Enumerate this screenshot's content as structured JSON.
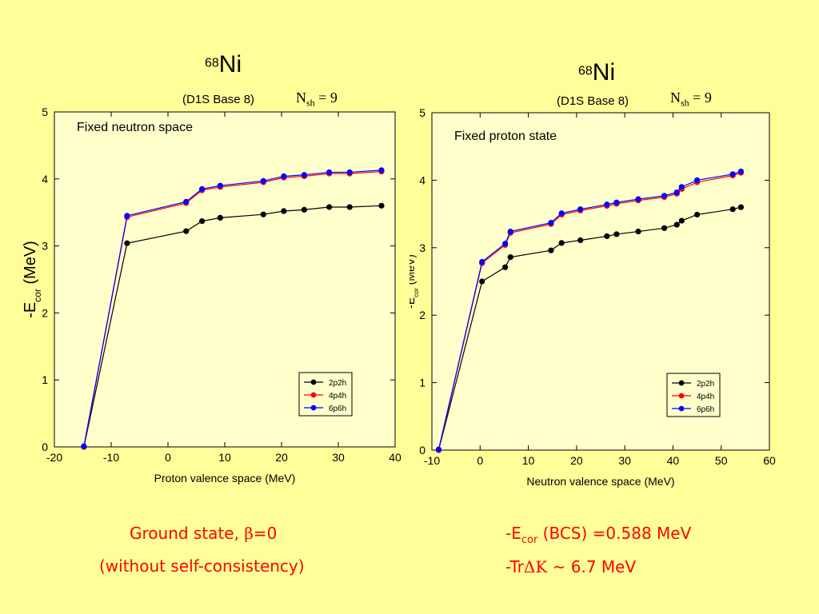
{
  "colors": {
    "background": "#ffff99",
    "plot_bg": "#ffffcc",
    "note": "#ff0000"
  },
  "left_panel": {
    "mass": "68",
    "element": "Ni",
    "subtitle": "(D1S  Base 8)",
    "nsh_base": "N",
    "nsh_sub": "sh",
    "nsh_tail": " = 9"
  },
  "right_panel": {
    "mass": "68",
    "element": "Ni",
    "subtitle": "(D1S  Base 8)",
    "nsh_base": "N",
    "nsh_sub": "sh",
    "nsh_tail": " = 9"
  },
  "notes": {
    "ground_state": "Ground state,  ",
    "beta": "β",
    "beta_eq": "=0",
    "self_consistency": "(without self-consistency)",
    "ecor_prefix": "-E",
    "ecor_sub": "cor",
    "ecor_tail": " (BCS) =0.588 MeV",
    "tr_prefix": "-Tr",
    "tr_symbols": "ΔΚ",
    "tr_tail": " ~ 6.7 MeV"
  },
  "chart_data": [
    {
      "type": "line",
      "annotation": "Fixed neutron space",
      "xlabel": "Proton valence space (MeV)",
      "ylabel_prefix": "-E",
      "ylabel_sub": "cor",
      "ylabel_tail": " (MeV)",
      "xlim": [
        -20,
        40
      ],
      "ylim": [
        0,
        5
      ],
      "xticks": [
        -20,
        -10,
        0,
        10,
        20,
        30,
        40
      ],
      "yticks": [
        0,
        1,
        2,
        3,
        4,
        5
      ],
      "legend_position": "bottom-right",
      "series": [
        {
          "name": "2p2h",
          "color": "#000000",
          "x": [
            -14.8,
            -7.2,
            3.2,
            6.0,
            9.2,
            16.8,
            20.4,
            24.0,
            28.4,
            32.0,
            37.6
          ],
          "y": [
            0.0,
            3.04,
            3.22,
            3.37,
            3.42,
            3.47,
            3.52,
            3.54,
            3.58,
            3.58,
            3.6
          ]
        },
        {
          "name": "4p4h",
          "color": "#ff0000",
          "x": [
            -14.8,
            -7.2,
            3.2,
            6.0,
            9.2,
            16.8,
            20.4,
            24.0,
            28.4,
            32.0,
            37.6
          ],
          "y": [
            0.0,
            3.43,
            3.64,
            3.83,
            3.88,
            3.95,
            4.02,
            4.04,
            4.08,
            4.08,
            4.11
          ]
        },
        {
          "name": "6p6h",
          "color": "#0000ff",
          "x": [
            -14.8,
            -7.2,
            3.2,
            6.0,
            9.2,
            16.8,
            20.4,
            24.0,
            28.4,
            32.0,
            37.6
          ],
          "y": [
            0.01,
            3.45,
            3.66,
            3.85,
            3.9,
            3.97,
            4.04,
            4.06,
            4.1,
            4.1,
            4.13
          ]
        }
      ]
    },
    {
      "type": "line",
      "annotation": "Fixed proton state",
      "xlabel": "Neutron valence space (MeV)",
      "ylabel_prefix": "-E",
      "ylabel_sub": "cor",
      "ylabel_tail": " (MeV)",
      "xlim": [
        -10,
        60
      ],
      "ylim": [
        0,
        5
      ],
      "xticks": [
        -10,
        0,
        10,
        20,
        30,
        40,
        50,
        60
      ],
      "yticks": [
        0,
        1,
        2,
        3,
        4,
        5
      ],
      "legend_position": "bottom-right",
      "series": [
        {
          "name": "2p2h",
          "color": "#000000",
          "x": [
            -8.6,
            0.4,
            5.2,
            6.3,
            14.7,
            16.9,
            20.8,
            26.3,
            28.3,
            32.8,
            38.2,
            40.8,
            41.8,
            45.0,
            52.4,
            54.1
          ],
          "y": [
            0.0,
            2.5,
            2.71,
            2.86,
            2.96,
            3.07,
            3.11,
            3.17,
            3.2,
            3.24,
            3.29,
            3.34,
            3.4,
            3.49,
            3.57,
            3.6
          ]
        },
        {
          "name": "4p4h",
          "color": "#ff0000",
          "x": [
            -8.6,
            0.4,
            5.2,
            6.3,
            14.7,
            16.9,
            20.8,
            26.3,
            28.3,
            32.8,
            38.2,
            40.8,
            41.8,
            45.0,
            52.4,
            54.1
          ],
          "y": [
            0.0,
            2.77,
            3.04,
            3.22,
            3.35,
            3.49,
            3.55,
            3.62,
            3.65,
            3.7,
            3.75,
            3.8,
            3.87,
            3.97,
            4.07,
            4.11
          ]
        },
        {
          "name": "6p6h",
          "color": "#0000ff",
          "x": [
            -8.6,
            0.4,
            5.2,
            6.3,
            14.7,
            16.9,
            20.8,
            26.3,
            28.3,
            32.8,
            38.2,
            40.8,
            41.8,
            45.0,
            52.4,
            54.1
          ],
          "y": [
            0.01,
            2.79,
            3.06,
            3.24,
            3.37,
            3.51,
            3.57,
            3.64,
            3.67,
            3.72,
            3.77,
            3.82,
            3.9,
            4.0,
            4.09,
            4.13
          ]
        }
      ]
    }
  ]
}
